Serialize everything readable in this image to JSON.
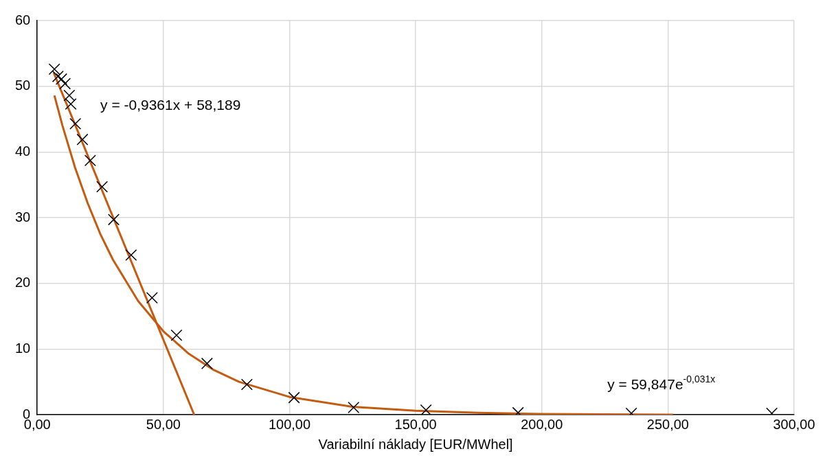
{
  "chart_data": {
    "type": "scatter",
    "xlabel": "Variabilní náklady [EUR/MWhel]",
    "xlim": [
      0,
      300
    ],
    "xticks": [
      {
        "value": 0,
        "label": "0,00"
      },
      {
        "value": 50,
        "label": "50,00"
      },
      {
        "value": 100,
        "label": "100,00"
      },
      {
        "value": 150,
        "label": "150,00"
      },
      {
        "value": 200,
        "label": "200,00"
      },
      {
        "value": 250,
        "label": "250,00"
      },
      {
        "value": 300,
        "label": "300,00"
      }
    ],
    "ylim": [
      0,
      60
    ],
    "yticks": [
      0,
      10,
      20,
      30,
      40,
      50,
      60
    ],
    "grid": true,
    "legend": false,
    "series": [
      {
        "marker": "cross",
        "color": "#000000",
        "x": [
          6.8,
          8.2,
          9.6,
          11.0,
          12.7,
          13.3,
          15.1,
          17.9,
          21.0,
          25.7,
          30.3,
          37.2,
          45.5,
          55.2,
          67.3,
          83.1,
          101.8,
          125.4,
          154.1,
          190.6,
          235.5,
          291.2
        ],
        "values": [
          52.6,
          51.5,
          51.1,
          50.4,
          48.6,
          47.3,
          44.3,
          41.9,
          38.7,
          34.7,
          29.7,
          24.3,
          17.8,
          12.1,
          7.8,
          4.6,
          2.6,
          1.1,
          0.7,
          0.3,
          0.2,
          0.2
        ]
      },
      {
        "type": "line",
        "color": "#c55a11",
        "x": [
          6.5,
          62.2
        ],
        "values": [
          52.1,
          0
        ]
      },
      {
        "type": "line",
        "color": "#c55a11",
        "x": [
          6.8,
          10,
          15,
          20,
          25,
          30,
          40,
          50,
          60,
          70,
          80,
          100,
          125,
          150,
          175,
          200,
          252
        ],
        "values": [
          48.6,
          44,
          37.6,
          32.2,
          27.5,
          23.6,
          17.3,
          12.7,
          9.3,
          6.8,
          5,
          2.7,
          1.2,
          0.6,
          0.3,
          0.1,
          0
        ]
      }
    ],
    "annotations": [
      "y = -0,9361x + 58,189",
      "y = 59,847e$^{-0,031x}$"
    ]
  }
}
